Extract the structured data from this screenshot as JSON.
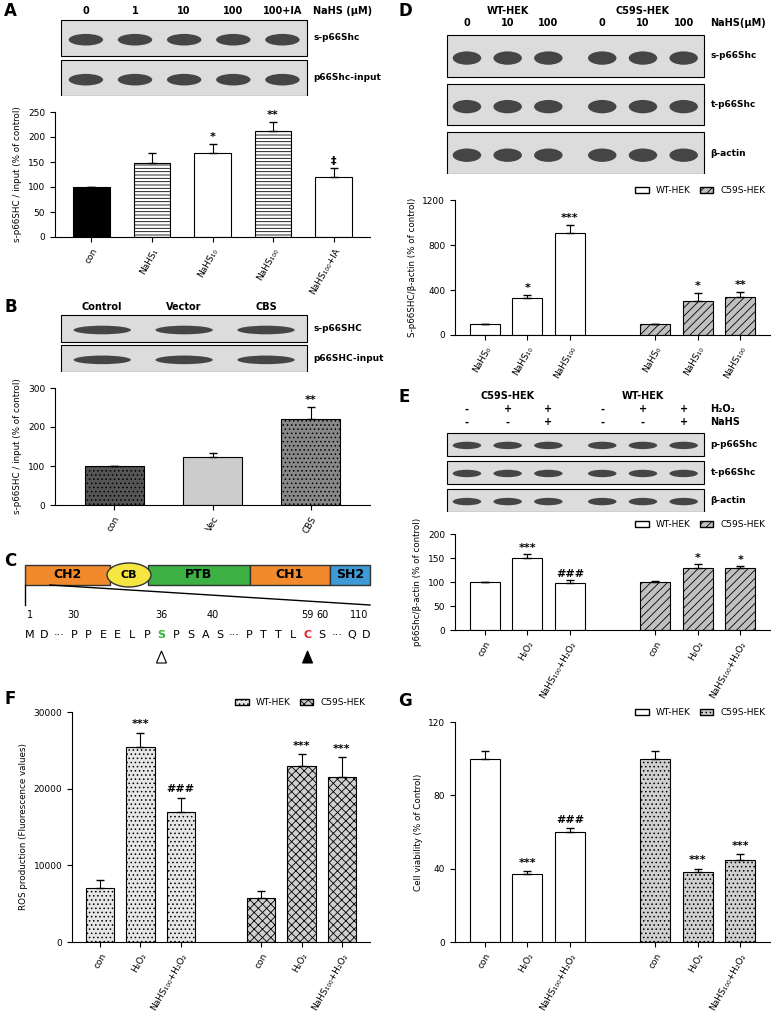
{
  "chart_data": [
    {
      "panel_label": "A",
      "type": "bar",
      "y_label": "s-p66SHC / input (% of control)",
      "categories": [
        "con",
        "NaHS₁",
        "NaHS₁₀",
        "NaHS₁₀₀",
        "NaHS₁₀₀+IA"
      ],
      "values": [
        100,
        148,
        168,
        212,
        120
      ],
      "errors": [
        0,
        20,
        18,
        18,
        18
      ],
      "significance": [
        null,
        null,
        "*",
        "**",
        "‡"
      ],
      "colors": [
        "#000000",
        "#ffffff",
        "#ffffff",
        "#ffffff",
        "#ffffff"
      ],
      "ylim": [
        0,
        250
      ],
      "yticks": [
        0,
        50,
        100,
        150,
        200,
        250
      ]
    },
    {
      "panel_label": "B",
      "type": "bar",
      "y_label": "s-p66SHC / input (% of control)",
      "categories": [
        "con",
        "Vec",
        "CBS"
      ],
      "values": [
        100,
        122,
        220
      ],
      "errors": [
        0,
        12,
        32
      ],
      "significance": [
        null,
        null,
        "**"
      ],
      "colors": [
        "#555555",
        "#cccccc",
        "#888888"
      ],
      "ylim": [
        0,
        300
      ],
      "yticks": [
        0,
        100,
        200,
        300
      ]
    },
    {
      "panel_label": "D",
      "type": "bar",
      "y_label": "S-p66SHC/β-actin (% of control)",
      "categories": [
        "NaHS₀",
        "NaHS₁₀",
        "NaHS₁₀₀"
      ],
      "series": [
        {
          "name": "WT-HEK",
          "color": "#ffffff",
          "values": [
            100,
            325,
            905
          ],
          "errors": [
            0,
            30,
            70
          ],
          "significance": [
            null,
            "*",
            "***"
          ]
        },
        {
          "name": "C59S-HEK",
          "color": "#c0c0c0",
          "values": [
            100,
            300,
            340
          ],
          "errors": [
            0,
            70,
            40
          ],
          "significance": [
            null,
            "*",
            "**"
          ]
        }
      ],
      "legend": "upper right",
      "ylim": [
        0,
        1200
      ],
      "yticks": [
        0,
        400,
        800,
        1200
      ]
    },
    {
      "panel_label": "E",
      "type": "bar",
      "y_label": "p66Shc/β-actin (% of control)",
      "categories": [
        "con",
        "H₂O₂",
        "NaHS₁₀₀+H₂O₂"
      ],
      "series": [
        {
          "name": "WT-HEK",
          "color": "#ffffff",
          "values": [
            100,
            150,
            98
          ],
          "errors": [
            0,
            8,
            6
          ],
          "significance": [
            null,
            "***",
            "###"
          ]
        },
        {
          "name": "C59S-HEK",
          "color": "#c0c0c0",
          "values": [
            100,
            130,
            129
          ],
          "errors": [
            3,
            7,
            4
          ],
          "significance": [
            null,
            "*",
            "*"
          ]
        }
      ],
      "legend": "upper right",
      "ylim": [
        0,
        200
      ],
      "yticks": [
        0,
        50,
        100,
        150,
        200
      ]
    },
    {
      "panel_label": "F",
      "type": "bar",
      "y_label": "ROS production (Fluorescence values)",
      "categories": [
        "con",
        "H₂O₂",
        "NaHS₁₀₀+H₂O₂"
      ],
      "series": [
        {
          "name": "WT-HEK",
          "color": "#e6e6e6",
          "values": [
            7100,
            25500,
            17000
          ],
          "errors": [
            1000,
            1800,
            1800
          ],
          "significance": [
            null,
            "***",
            "###"
          ]
        },
        {
          "name": "C59S-HEK",
          "color": "#d0d0d0",
          "values": [
            5700,
            23000,
            21500
          ],
          "errors": [
            1000,
            1500,
            2600
          ],
          "significance": [
            null,
            "***",
            "***"
          ]
        }
      ],
      "legend": "upper right",
      "ylim": [
        0,
        30000
      ],
      "yticks": [
        0,
        10000,
        20000,
        30000
      ]
    },
    {
      "panel_label": "G",
      "type": "bar",
      "y_label": "Cell viability (% of Control)",
      "categories": [
        "con",
        "H₂O₂",
        "NaHS₁₀₀+H₂O₂"
      ],
      "series": [
        {
          "name": "WT-HEK",
          "color": "#ffffff",
          "values": [
            100,
            37,
            60
          ],
          "errors": [
            4,
            1.5,
            2
          ],
          "significance": [
            null,
            "***",
            "###"
          ]
        },
        {
          "name": "C59S-HEK",
          "color": "#d0d0d0",
          "values": [
            100,
            38,
            45
          ],
          "errors": [
            4,
            2,
            3
          ],
          "significance": [
            null,
            "***",
            "***"
          ]
        }
      ],
      "legend": "upper right",
      "ylim": [
        0,
        120
      ],
      "yticks": [
        0,
        40,
        80,
        120
      ]
    }
  ],
  "blots": [
    {
      "lanes": [
        "0",
        "1",
        "10",
        "100",
        "100+IA"
      ],
      "header_label": "NaHS (μM)",
      "rows": [
        "s-p66Shc",
        "p66Shc-input"
      ]
    },
    {
      "lanes": [
        "Control",
        "Vector",
        "CBS"
      ],
      "rows": [
        "s-p66SHC",
        "p66SHC-input"
      ]
    },
    {
      "groups": [
        "WT-HEK",
        "C59S-HEK"
      ],
      "lanes": [
        "0",
        "10",
        "100",
        "0",
        "10",
        "100"
      ],
      "header_label": "NaHS(μM)",
      "rows": [
        "s-p66Shc",
        "t-p66Shc",
        "β-actin"
      ]
    },
    {
      "groups": [
        "C59S-HEK",
        "WT-HEK"
      ],
      "treatments": [
        {
          "name": "H₂O₂",
          "signs": [
            "-",
            "+",
            "+",
            "-",
            "+",
            "+"
          ]
        },
        {
          "name": "NaHS",
          "signs": [
            "-",
            "-",
            "+",
            "-",
            "-",
            "+"
          ]
        }
      ],
      "rows": [
        "p-p66Shc",
        "t-p66Shc",
        "β-actin"
      ]
    }
  ],
  "diagram": {
    "panel_label": "C",
    "domains": [
      "CH2",
      "CB",
      "PTB",
      "CH1",
      "SH2"
    ],
    "domain_colors": [
      "#f08a2c",
      "#f5e642",
      "#3cb043",
      "#f08a2c",
      "#3d9ad6"
    ],
    "residue_numbers": [
      "1",
      "30",
      "36",
      "40",
      "59",
      "60",
      "110"
    ],
    "sequence": [
      {
        "text": "M"
      },
      {
        "text": "D"
      },
      {
        "text": "···"
      },
      {
        "text": "P"
      },
      {
        "text": "P"
      },
      {
        "text": "E"
      },
      {
        "text": "E"
      },
      {
        "text": "L"
      },
      {
        "text": "P"
      },
      {
        "text": "S",
        "color": "#2eb82e"
      },
      {
        "text": "P"
      },
      {
        "text": "S"
      },
      {
        "text": "A"
      },
      {
        "text": "S"
      },
      {
        "text": "···"
      },
      {
        "text": "P"
      },
      {
        "text": "T"
      },
      {
        "text": "T"
      },
      {
        "text": "L"
      },
      {
        "text": "C",
        "color": "#e8222b"
      },
      {
        "text": "S"
      },
      {
        "text": "···"
      },
      {
        "text": "Q"
      },
      {
        "text": "D"
      }
    ]
  }
}
